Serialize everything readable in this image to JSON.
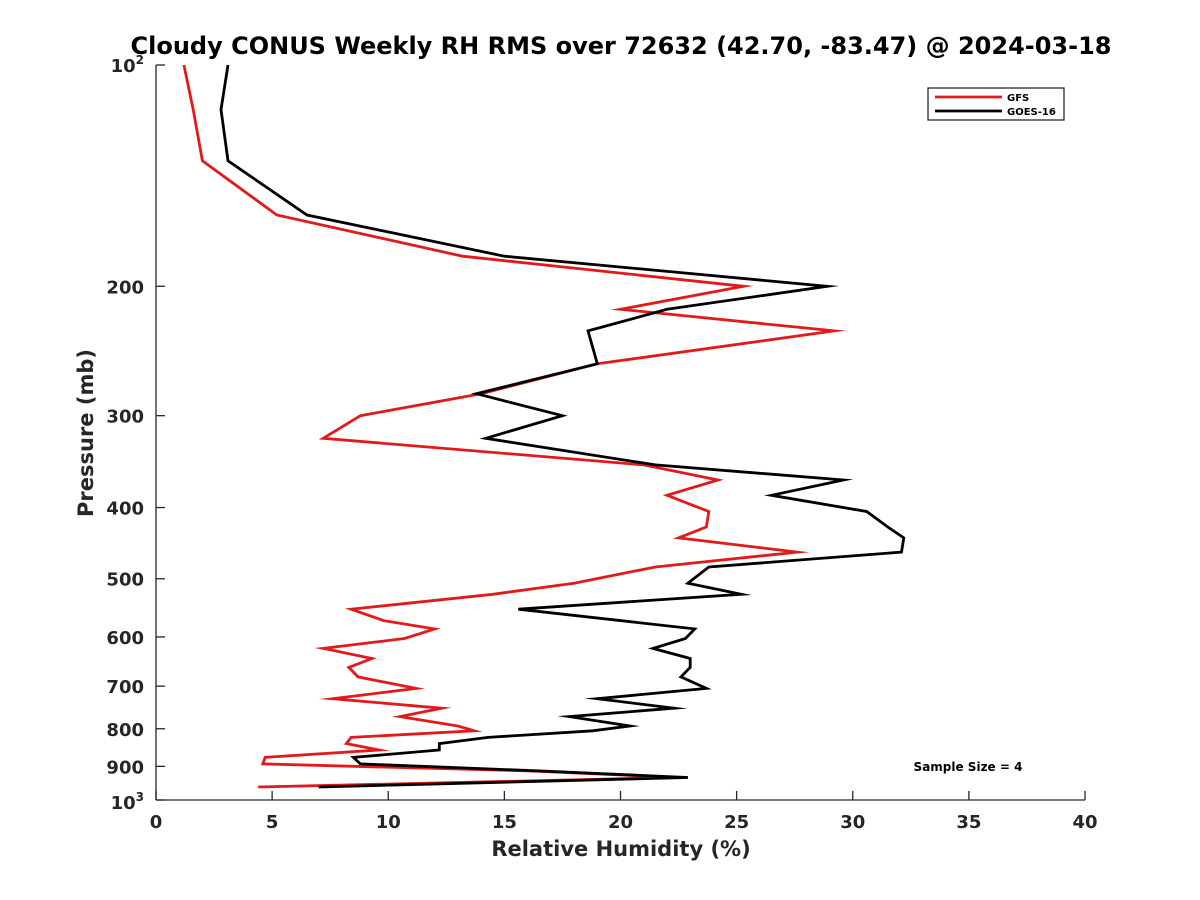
{
  "chart_data": {
    "type": "line",
    "title": "Cloudy CONUS Weekly RH RMS over 72632 (42.70, -83.47) @ 2024-03-18",
    "xlabel": "Relative Humidity (%)",
    "ylabel": "Pressure (mb)",
    "xlim": [
      0,
      40
    ],
    "ylim": [
      100,
      1000
    ],
    "yscale": "log",
    "yaxis_reversed": true,
    "x_ticks": [
      0,
      5,
      10,
      15,
      20,
      25,
      30,
      35,
      40
    ],
    "x_tick_labels": [
      "0",
      "5",
      "10",
      "15",
      "20",
      "25",
      "30",
      "35",
      "40"
    ],
    "y_ticks": [
      {
        "value": 100,
        "label": "10",
        "sup": "2"
      },
      {
        "value": 200,
        "label": "200",
        "sup": ""
      },
      {
        "value": 300,
        "label": "300",
        "sup": ""
      },
      {
        "value": 400,
        "label": "400",
        "sup": ""
      },
      {
        "value": 500,
        "label": "500",
        "sup": ""
      },
      {
        "value": 600,
        "label": "600",
        "sup": ""
      },
      {
        "value": 700,
        "label": "700",
        "sup": ""
      },
      {
        "value": 800,
        "label": "800",
        "sup": ""
      },
      {
        "value": 900,
        "label": "900",
        "sup": ""
      },
      {
        "value": 1000,
        "label": "10",
        "sup": "3"
      }
    ],
    "grid": false,
    "legend_position": "top-right",
    "annotation": "Sample Size = 4",
    "series": [
      {
        "name": "GFS",
        "color": "#e31a1c",
        "points": [
          [
            1.2,
            100
          ],
          [
            1.6,
            115
          ],
          [
            2.0,
            135
          ],
          [
            5.2,
            160
          ],
          [
            13.2,
            182
          ],
          [
            25.3,
            200
          ],
          [
            20.0,
            215
          ],
          [
            29.2,
            230
          ],
          [
            19.0,
            255
          ],
          [
            14.0,
            280
          ],
          [
            8.8,
            300
          ],
          [
            7.2,
            322
          ],
          [
            21.0,
            350
          ],
          [
            24.2,
            367
          ],
          [
            22.0,
            385
          ],
          [
            23.8,
            405
          ],
          [
            23.7,
            425
          ],
          [
            22.5,
            440
          ],
          [
            27.6,
            460
          ],
          [
            21.5,
            482
          ],
          [
            18.0,
            507
          ],
          [
            14.5,
            525
          ],
          [
            8.4,
            550
          ],
          [
            9.8,
            570
          ],
          [
            12.0,
            585
          ],
          [
            10.7,
            603
          ],
          [
            7.2,
            622
          ],
          [
            9.3,
            642
          ],
          [
            8.3,
            660
          ],
          [
            8.7,
            680
          ],
          [
            11.2,
            705
          ],
          [
            7.6,
            728
          ],
          [
            12.3,
            750
          ],
          [
            10.5,
            770
          ],
          [
            13.0,
            793
          ],
          [
            13.7,
            805
          ],
          [
            8.4,
            822
          ],
          [
            8.2,
            838
          ],
          [
            9.6,
            855
          ],
          [
            4.7,
            875
          ],
          [
            4.6,
            893
          ],
          [
            16.0,
            913
          ],
          [
            22.5,
            932
          ],
          [
            4.4,
            960
          ]
        ]
      },
      {
        "name": "GOES-16",
        "color": "#000000",
        "points": [
          [
            3.1,
            100
          ],
          [
            2.8,
            115
          ],
          [
            3.1,
            135
          ],
          [
            6.5,
            160
          ],
          [
            15.0,
            182
          ],
          [
            28.9,
            200
          ],
          [
            22.0,
            215
          ],
          [
            18.6,
            230
          ],
          [
            19.0,
            255
          ],
          [
            13.8,
            280
          ],
          [
            17.5,
            300
          ],
          [
            14.2,
            322
          ],
          [
            21.5,
            350
          ],
          [
            29.6,
            367
          ],
          [
            26.5,
            385
          ],
          [
            30.6,
            405
          ],
          [
            31.5,
            425
          ],
          [
            32.2,
            440
          ],
          [
            32.1,
            460
          ],
          [
            23.8,
            482
          ],
          [
            22.9,
            507
          ],
          [
            25.2,
            525
          ],
          [
            15.6,
            550
          ],
          [
            23.2,
            585
          ],
          [
            22.8,
            603
          ],
          [
            21.4,
            622
          ],
          [
            23.0,
            642
          ],
          [
            23.0,
            660
          ],
          [
            22.6,
            680
          ],
          [
            23.7,
            705
          ],
          [
            19.0,
            728
          ],
          [
            22.3,
            750
          ],
          [
            17.8,
            770
          ],
          [
            20.4,
            793
          ],
          [
            18.8,
            805
          ],
          [
            14.3,
            822
          ],
          [
            12.2,
            838
          ],
          [
            12.2,
            855
          ],
          [
            8.5,
            875
          ],
          [
            8.8,
            893
          ],
          [
            16.5,
            913
          ],
          [
            22.9,
            932
          ],
          [
            7.0,
            960
          ]
        ]
      }
    ]
  }
}
